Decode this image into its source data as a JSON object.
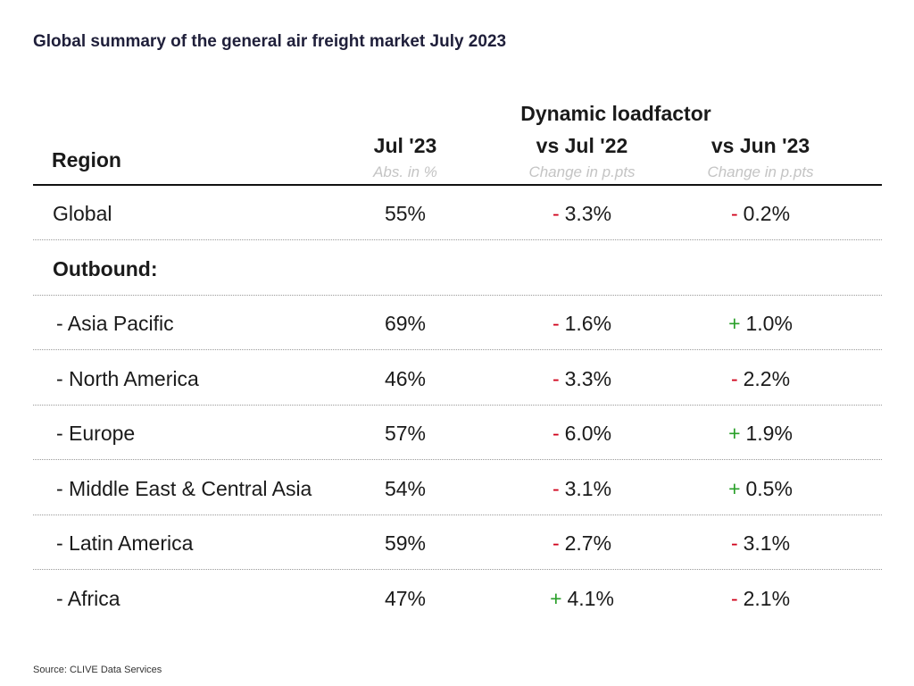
{
  "title": "Global summary of the general air freight market July 2023",
  "chart_data": {
    "type": "table",
    "group_header": "Dynamic loadfactor",
    "columns": [
      {
        "header": "Region",
        "subheader": ""
      },
      {
        "header": "Jul '23",
        "subheader": "Abs. in %"
      },
      {
        "header": "vs Jul '22",
        "subheader": "Change in p.pts"
      },
      {
        "header": "vs Jun '23",
        "subheader": "Change in p.pts"
      }
    ],
    "rows": [
      {
        "region": "Global",
        "abs": "55%",
        "yoy": {
          "sign": "-",
          "value": "3.3%"
        },
        "mom": {
          "sign": "-",
          "value": "0.2%"
        }
      },
      {
        "region": "Outbound:",
        "section": true
      },
      {
        "region": "- Asia Pacific",
        "abs": "69%",
        "yoy": {
          "sign": "-",
          "value": "1.6%"
        },
        "mom": {
          "sign": "+",
          "value": "1.0%"
        }
      },
      {
        "region": "- North America",
        "abs": "46%",
        "yoy": {
          "sign": "-",
          "value": "3.3%"
        },
        "mom": {
          "sign": "-",
          "value": "2.2%"
        }
      },
      {
        "region": "- Europe",
        "abs": "57%",
        "yoy": {
          "sign": "-",
          "value": "6.0%"
        },
        "mom": {
          "sign": "+",
          "value": "1.9%"
        }
      },
      {
        "region": "- Middle East & Central Asia",
        "abs": "54%",
        "yoy": {
          "sign": "-",
          "value": "3.1%"
        },
        "mom": {
          "sign": "+",
          "value": "0.5%"
        }
      },
      {
        "region": "- Latin America",
        "abs": "59%",
        "yoy": {
          "sign": "-",
          "value": "2.7%"
        },
        "mom": {
          "sign": "-",
          "value": "3.1%"
        }
      },
      {
        "region": "- Africa",
        "abs": "47%",
        "yoy": {
          "sign": "+",
          "value": "4.1%"
        },
        "mom": {
          "sign": "-",
          "value": "2.1%"
        }
      }
    ],
    "colors": {
      "negative": "#d0021b",
      "positive": "#2aa02a"
    }
  },
  "source": "Source: CLIVE Data Services"
}
